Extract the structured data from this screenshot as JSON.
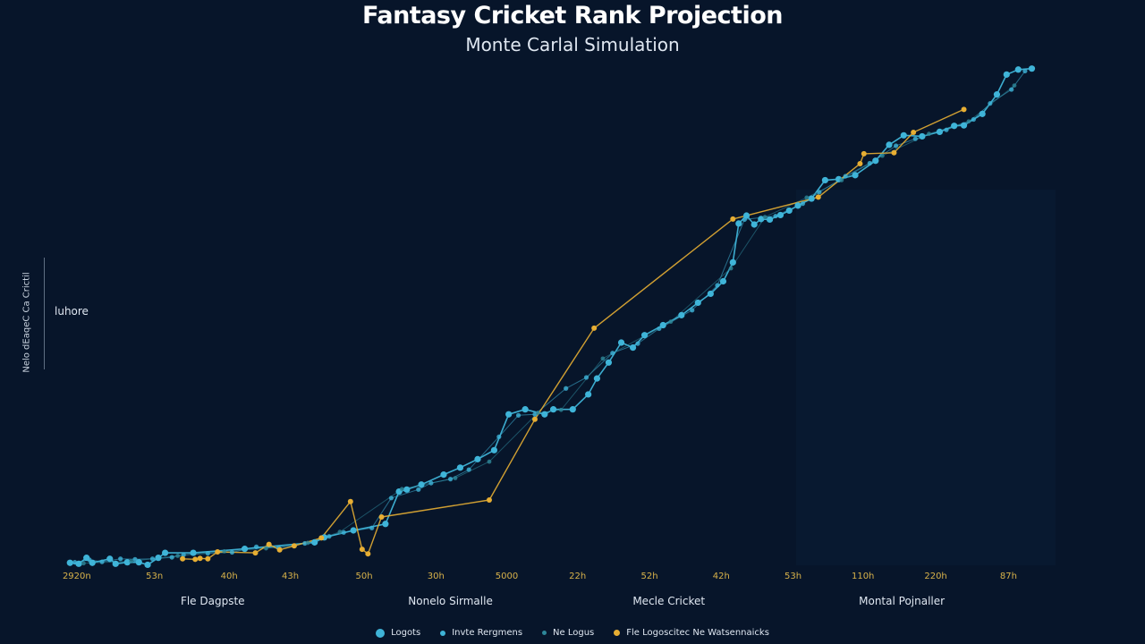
{
  "chart_data": {
    "type": "line",
    "title": "Fantasy Cricket Rank Projection",
    "subtitle": "Monte Carlal Simulation",
    "ylabel": "Nelo dEaqeC Ca Crictil",
    "y_annotation": "luhore",
    "xlim": [
      0,
      100
    ],
    "ylim": [
      0,
      100
    ],
    "x_ticks": [
      {
        "x": 1,
        "label": "2920n"
      },
      {
        "x": 9,
        "label": "53n"
      },
      {
        "x": 16.7,
        "label": "40h"
      },
      {
        "x": 23,
        "label": "43h"
      },
      {
        "x": 30.6,
        "label": "50h"
      },
      {
        "x": 38,
        "label": "30h"
      },
      {
        "x": 45.3,
        "label": "5000"
      },
      {
        "x": 52.6,
        "label": "22h"
      },
      {
        "x": 60,
        "label": "52h"
      },
      {
        "x": 67.4,
        "label": "42h"
      },
      {
        "x": 74.8,
        "label": "53h"
      },
      {
        "x": 82,
        "label": "110h"
      },
      {
        "x": 89.5,
        "label": "220h"
      },
      {
        "x": 97,
        "label": "87h"
      }
    ],
    "group_labels": [
      {
        "x": 15,
        "label": "Fle Dagpste"
      },
      {
        "x": 39.5,
        "label": "Nonelo Sirmalle"
      },
      {
        "x": 62,
        "label": "Mecle Cricket"
      },
      {
        "x": 86,
        "label": "Montal Pojnaller"
      }
    ],
    "series": [
      {
        "name": "Logots",
        "color": "#3fb4d8",
        "points": [
          {
            "x": 0.3,
            "y": 0.5
          },
          {
            "x": 1.2,
            "y": 0.3
          },
          {
            "x": 2,
            "y": 1.5
          },
          {
            "x": 2.6,
            "y": 0.5
          },
          {
            "x": 4.4,
            "y": 1.3
          },
          {
            "x": 5,
            "y": 0.3
          },
          {
            "x": 6.2,
            "y": 0.6
          },
          {
            "x": 7.4,
            "y": 0.6
          },
          {
            "x": 8.3,
            "y": 0.1
          },
          {
            "x": 9.4,
            "y": 1.5
          },
          {
            "x": 10.1,
            "y": 2.5
          },
          {
            "x": 13,
            "y": 2.5
          },
          {
            "x": 18.3,
            "y": 3.3
          },
          {
            "x": 25.5,
            "y": 4.6
          },
          {
            "x": 26.5,
            "y": 5.6
          },
          {
            "x": 29.5,
            "y": 7
          },
          {
            "x": 32.8,
            "y": 8.3
          },
          {
            "x": 34.2,
            "y": 14.8
          },
          {
            "x": 35,
            "y": 15.2
          },
          {
            "x": 36.5,
            "y": 16.2
          },
          {
            "x": 38.8,
            "y": 18.2
          },
          {
            "x": 40.5,
            "y": 19.6
          },
          {
            "x": 42.3,
            "y": 21.3
          },
          {
            "x": 44,
            "y": 23.1
          },
          {
            "x": 45.5,
            "y": 30.3
          },
          {
            "x": 47.2,
            "y": 31.3
          },
          {
            "x": 49.2,
            "y": 30.3
          },
          {
            "x": 50.1,
            "y": 31.3
          },
          {
            "x": 52.1,
            "y": 31.3
          },
          {
            "x": 53.7,
            "y": 34.3
          },
          {
            "x": 54.6,
            "y": 37.5
          },
          {
            "x": 55.8,
            "y": 40.7
          },
          {
            "x": 57.1,
            "y": 44.7
          },
          {
            "x": 58.3,
            "y": 43.7
          },
          {
            "x": 59.5,
            "y": 46.2
          },
          {
            "x": 61.4,
            "y": 48.2
          },
          {
            "x": 63.3,
            "y": 50.2
          },
          {
            "x": 65,
            "y": 52.7
          },
          {
            "x": 66.3,
            "y": 54.5
          },
          {
            "x": 67.6,
            "y": 57
          },
          {
            "x": 68.6,
            "y": 60.8
          },
          {
            "x": 69.2,
            "y": 68.6
          },
          {
            "x": 70,
            "y": 70.2
          },
          {
            "x": 70.8,
            "y": 68.4
          },
          {
            "x": 71.5,
            "y": 69.5
          },
          {
            "x": 72.4,
            "y": 69.4
          },
          {
            "x": 73.5,
            "y": 70.3
          },
          {
            "x": 74.4,
            "y": 71.2
          },
          {
            "x": 75.3,
            "y": 72.2
          },
          {
            "x": 76.7,
            "y": 73.6
          },
          {
            "x": 78.1,
            "y": 77.3
          },
          {
            "x": 79.5,
            "y": 77.5
          },
          {
            "x": 81.2,
            "y": 78.3
          },
          {
            "x": 83.3,
            "y": 81.2
          },
          {
            "x": 84.7,
            "y": 84.4
          },
          {
            "x": 86.2,
            "y": 86.3
          },
          {
            "x": 88.1,
            "y": 86.1
          },
          {
            "x": 89.9,
            "y": 87
          },
          {
            "x": 91.4,
            "y": 88.2
          },
          {
            "x": 92.4,
            "y": 88.3
          },
          {
            "x": 94.3,
            "y": 90.6
          },
          {
            "x": 95.8,
            "y": 94.5
          },
          {
            "x": 96.8,
            "y": 98.5
          },
          {
            "x": 98,
            "y": 99.5
          },
          {
            "x": 99.4,
            "y": 99.7
          }
        ]
      },
      {
        "name": "Invte Rergmens",
        "color": "#3fb4d8",
        "points": [
          {
            "x": 0.8,
            "y": 0.6
          },
          {
            "x": 2.3,
            "y": 1.1
          },
          {
            "x": 3.6,
            "y": 0.7
          },
          {
            "x": 5.5,
            "y": 1.3
          },
          {
            "x": 7,
            "y": 1.2
          },
          {
            "x": 8.8,
            "y": 1.3
          },
          {
            "x": 10.8,
            "y": 1.6
          },
          {
            "x": 12,
            "y": 2.1
          },
          {
            "x": 14.5,
            "y": 2.4
          },
          {
            "x": 17,
            "y": 2.6
          },
          {
            "x": 19.5,
            "y": 3.7
          },
          {
            "x": 21.8,
            "y": 3.5
          },
          {
            "x": 24.5,
            "y": 4.4
          },
          {
            "x": 27,
            "y": 5.8
          },
          {
            "x": 28.5,
            "y": 6.6
          },
          {
            "x": 31.4,
            "y": 7.5
          },
          {
            "x": 33.4,
            "y": 13.5
          },
          {
            "x": 36.2,
            "y": 15.2
          },
          {
            "x": 37.5,
            "y": 16.5
          },
          {
            "x": 39.5,
            "y": 17.3
          },
          {
            "x": 41.4,
            "y": 19.2
          },
          {
            "x": 44.5,
            "y": 25.8
          },
          {
            "x": 46.5,
            "y": 30.1
          },
          {
            "x": 48.2,
            "y": 30.3
          },
          {
            "x": 51.4,
            "y": 35.5
          },
          {
            "x": 53.5,
            "y": 37.7
          },
          {
            "x": 56.2,
            "y": 42.6
          },
          {
            "x": 58.8,
            "y": 44.5
          },
          {
            "x": 61,
            "y": 47.5
          },
          {
            "x": 64.4,
            "y": 51.2
          },
          {
            "x": 67,
            "y": 56.2
          },
          {
            "x": 69.8,
            "y": 69.4
          },
          {
            "x": 73,
            "y": 70.1
          },
          {
            "x": 75.8,
            "y": 72.6
          },
          {
            "x": 77.5,
            "y": 74.9
          },
          {
            "x": 80.2,
            "y": 78.1
          },
          {
            "x": 82.7,
            "y": 80.7
          },
          {
            "x": 85.4,
            "y": 84.2
          },
          {
            "x": 87.4,
            "y": 85.6
          },
          {
            "x": 90.6,
            "y": 87.4
          },
          {
            "x": 93.4,
            "y": 89.5
          },
          {
            "x": 95.1,
            "y": 92.7
          },
          {
            "x": 97.3,
            "y": 95.5
          },
          {
            "x": 98.7,
            "y": 99.2
          }
        ]
      },
      {
        "name": "Ne Logus",
        "color": "#2e8799",
        "points": [
          {
            "x": 1.7,
            "y": 0.4
          },
          {
            "x": 6.6,
            "y": 0.8
          },
          {
            "x": 11.4,
            "y": 1.9
          },
          {
            "x": 16.2,
            "y": 2.8
          },
          {
            "x": 20.5,
            "y": 3.4
          },
          {
            "x": 24.8,
            "y": 4.5
          },
          {
            "x": 28.1,
            "y": 6.7
          },
          {
            "x": 34.5,
            "y": 15.3
          },
          {
            "x": 40,
            "y": 17.5
          },
          {
            "x": 43.5,
            "y": 20.8
          },
          {
            "x": 48.5,
            "y": 30.6
          },
          {
            "x": 50.9,
            "y": 31.2
          },
          {
            "x": 55.2,
            "y": 41.5
          },
          {
            "x": 62.2,
            "y": 48.9
          },
          {
            "x": 68.4,
            "y": 59.6
          },
          {
            "x": 71.9,
            "y": 69.9
          },
          {
            "x": 76.2,
            "y": 73.8
          },
          {
            "x": 79.8,
            "y": 77.3
          },
          {
            "x": 84,
            "y": 82.2
          },
          {
            "x": 88.8,
            "y": 86.6
          },
          {
            "x": 92.9,
            "y": 89.1
          },
          {
            "x": 97.6,
            "y": 96.3
          }
        ]
      },
      {
        "name": "Fle Logoscitec Ne Watsennaicks",
        "color": "#e7ae33",
        "points": [
          {
            "x": 11.9,
            "y": 1.3
          },
          {
            "x": 13.2,
            "y": 1.2
          },
          {
            "x": 13.7,
            "y": 1.4
          },
          {
            "x": 14.5,
            "y": 1.3
          },
          {
            "x": 15.5,
            "y": 2.7
          },
          {
            "x": 19.4,
            "y": 2.5
          },
          {
            "x": 20.8,
            "y": 4.2
          },
          {
            "x": 21.9,
            "y": 3.1
          },
          {
            "x": 23.4,
            "y": 3.9
          },
          {
            "x": 26.2,
            "y": 5.5
          },
          {
            "x": 29.2,
            "y": 12.8
          },
          {
            "x": 30.4,
            "y": 3.2
          },
          {
            "x": 31,
            "y": 2.3
          },
          {
            "x": 32.4,
            "y": 9.7
          },
          {
            "x": 43.5,
            "y": 13.1
          },
          {
            "x": 48.2,
            "y": 29.3
          },
          {
            "x": 54.3,
            "y": 47.6
          },
          {
            "x": 68.6,
            "y": 69.5
          },
          {
            "x": 77.4,
            "y": 73.9
          },
          {
            "x": 81.7,
            "y": 80.6
          },
          {
            "x": 82.1,
            "y": 82.6
          },
          {
            "x": 85.2,
            "y": 82.8
          },
          {
            "x": 87.2,
            "y": 86.9
          },
          {
            "x": 92.4,
            "y": 91.5
          }
        ]
      }
    ],
    "legend_placement": "bottom-center",
    "grid": false
  }
}
